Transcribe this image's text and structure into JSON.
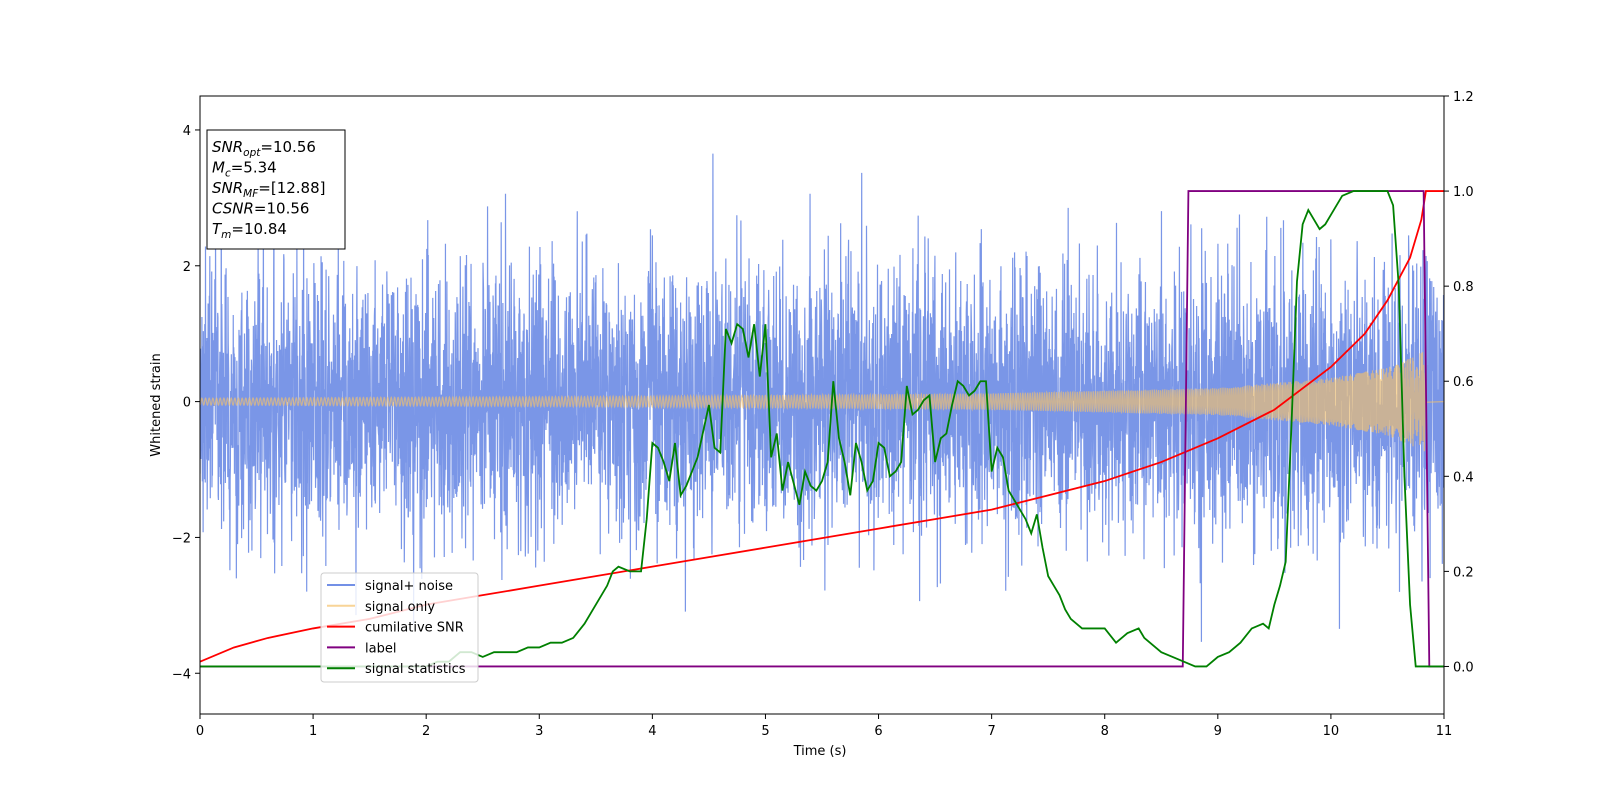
{
  "chart_data": {
    "type": "line",
    "xlabel": "Time (s)",
    "ylabel": "Whitened strain",
    "xlim": [
      0,
      11
    ],
    "ylim": [
      -4.6,
      4.5
    ],
    "y2lim": [
      -0.1,
      1.2
    ],
    "xticks": [
      "0",
      "1",
      "2",
      "3",
      "4",
      "5",
      "6",
      "7",
      "8",
      "9",
      "10",
      "11"
    ],
    "yticks": [
      "4",
      "2",
      "0",
      "−2",
      "−4"
    ],
    "y2ticks": [
      "1.2",
      "1.0",
      "0.8",
      "0.6",
      "0.4",
      "0.2",
      "0.0"
    ],
    "grid": false,
    "legend_position": "lower-left",
    "annotation": {
      "lines": [
        {
          "main": "SNR",
          "sub": "opt",
          "value": "=10.56"
        },
        {
          "main": "M",
          "sub": "c",
          "value": "=5.34"
        },
        {
          "main": "SNR",
          "sub": "MF",
          "value": "=[12.88]"
        },
        {
          "main": "CSNR",
          "sub": "",
          "value": "=10.56"
        },
        {
          "main": "T",
          "sub": "m",
          "value": "=10.84"
        }
      ]
    },
    "series": [
      {
        "name": "signal+ noise",
        "axis": "left",
        "color": "#7390e6",
        "kind": "noise",
        "sigma": 1.0,
        "typical_range": [
          -2.8,
          4.1
        ]
      },
      {
        "name": "signal only",
        "axis": "left",
        "color": "#f5c26b",
        "kind": "chirp",
        "envelope": {
          "x": [
            0,
            4,
            7,
            9,
            10,
            10.5,
            10.84
          ],
          "y": [
            0.05,
            0.08,
            0.12,
            0.2,
            0.35,
            0.5,
            0.75
          ]
        }
      },
      {
        "name": "cumilative SNR",
        "axis": "right",
        "color": "#ff0000",
        "x": [
          0,
          0.3,
          0.6,
          1,
          1.5,
          2,
          2.5,
          3,
          3.5,
          4,
          4.5,
          5,
          5.5,
          6,
          6.5,
          7,
          7.5,
          8,
          8.5,
          9,
          9.5,
          10,
          10.3,
          10.5,
          10.7,
          10.8,
          10.84,
          11
        ],
        "y": [
          0.01,
          0.04,
          0.06,
          0.08,
          0.1,
          0.13,
          0.15,
          0.17,
          0.19,
          0.21,
          0.23,
          0.25,
          0.27,
          0.29,
          0.31,
          0.33,
          0.36,
          0.39,
          0.43,
          0.48,
          0.54,
          0.63,
          0.7,
          0.77,
          0.86,
          0.94,
          1.0,
          1.0
        ]
      },
      {
        "name": "label",
        "axis": "right",
        "color": "#800080",
        "x": [
          0,
          8.69,
          8.74,
          10.82,
          10.87,
          11
        ],
        "y": [
          0.0,
          0.0,
          1.0,
          1.0,
          0.0,
          0.0
        ]
      },
      {
        "name": "signal statistics",
        "axis": "right",
        "color": "#008000",
        "x": [
          0,
          0.5,
          1,
          1.5,
          2,
          2.1,
          2.2,
          2.3,
          2.4,
          2.5,
          2.6,
          2.7,
          2.8,
          2.9,
          3.0,
          3.1,
          3.2,
          3.3,
          3.4,
          3.5,
          3.6,
          3.65,
          3.7,
          3.8,
          3.85,
          3.9,
          3.95,
          4.0,
          4.05,
          4.1,
          4.15,
          4.2,
          4.25,
          4.3,
          4.4,
          4.5,
          4.55,
          4.6,
          4.65,
          4.7,
          4.75,
          4.8,
          4.85,
          4.9,
          4.95,
          5.0,
          5.05,
          5.1,
          5.15,
          5.2,
          5.3,
          5.35,
          5.4,
          5.45,
          5.5,
          5.55,
          5.6,
          5.65,
          5.7,
          5.75,
          5.8,
          5.85,
          5.9,
          5.95,
          6.0,
          6.05,
          6.1,
          6.15,
          6.2,
          6.25,
          6.3,
          6.35,
          6.4,
          6.45,
          6.5,
          6.55,
          6.6,
          6.65,
          6.7,
          6.75,
          6.8,
          6.85,
          6.9,
          6.95,
          7.0,
          7.05,
          7.1,
          7.15,
          7.2,
          7.25,
          7.3,
          7.35,
          7.4,
          7.45,
          7.5,
          7.55,
          7.6,
          7.65,
          7.7,
          7.75,
          7.8,
          7.85,
          7.9,
          8.0,
          8.1,
          8.2,
          8.3,
          8.35,
          8.4,
          8.5,
          8.6,
          8.7,
          8.8,
          8.9,
          9.0,
          9.1,
          9.2,
          9.3,
          9.4,
          9.45,
          9.5,
          9.55,
          9.6,
          9.65,
          9.7,
          9.75,
          9.8,
          9.85,
          9.9,
          9.95,
          10.0,
          10.05,
          10.1,
          10.2,
          10.3,
          10.4,
          10.5,
          10.55,
          10.6,
          10.65,
          10.7,
          10.75,
          10.8,
          10.85,
          10.9,
          11.0
        ],
        "y": [
          0.0,
          0.0,
          0.0,
          0.0,
          0.0,
          0.01,
          0.01,
          0.03,
          0.03,
          0.02,
          0.03,
          0.03,
          0.03,
          0.04,
          0.04,
          0.05,
          0.05,
          0.06,
          0.09,
          0.13,
          0.17,
          0.2,
          0.21,
          0.2,
          0.2,
          0.2,
          0.31,
          0.47,
          0.46,
          0.43,
          0.39,
          0.47,
          0.36,
          0.38,
          0.44,
          0.55,
          0.46,
          0.45,
          0.71,
          0.68,
          0.72,
          0.71,
          0.65,
          0.72,
          0.61,
          0.72,
          0.44,
          0.49,
          0.37,
          0.43,
          0.34,
          0.41,
          0.38,
          0.37,
          0.39,
          0.43,
          0.6,
          0.48,
          0.43,
          0.36,
          0.47,
          0.43,
          0.37,
          0.39,
          0.47,
          0.46,
          0.4,
          0.41,
          0.43,
          0.59,
          0.53,
          0.54,
          0.56,
          0.57,
          0.43,
          0.48,
          0.49,
          0.55,
          0.6,
          0.59,
          0.57,
          0.58,
          0.6,
          0.6,
          0.41,
          0.46,
          0.44,
          0.37,
          0.35,
          0.33,
          0.31,
          0.28,
          0.32,
          0.25,
          0.19,
          0.17,
          0.15,
          0.12,
          0.1,
          0.09,
          0.08,
          0.08,
          0.08,
          0.08,
          0.05,
          0.07,
          0.08,
          0.06,
          0.05,
          0.03,
          0.02,
          0.01,
          0.0,
          0.0,
          0.02,
          0.03,
          0.05,
          0.08,
          0.09,
          0.08,
          0.13,
          0.17,
          0.22,
          0.5,
          0.81,
          0.93,
          0.96,
          0.94,
          0.92,
          0.93,
          0.95,
          0.97,
          0.99,
          1.0,
          1.0,
          1.0,
          1.0,
          0.97,
          0.8,
          0.4,
          0.13,
          0.0,
          0.0,
          0.0,
          0.0,
          0.0
        ]
      }
    ]
  }
}
